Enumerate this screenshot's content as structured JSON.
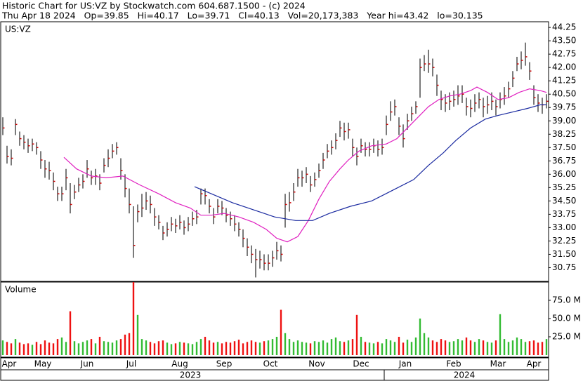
{
  "header": {
    "line1": "Historic Chart for US:VZ by Stockwatch.com 604.687.1500 - (c) 2024",
    "line2": "Thu Apr 18 2024   Op=39.85   Hi=40.17   Lo=39.71   Cl=40.13   Vol=20,173,383   Year hi=43.42   lo=30.135"
  },
  "chart_data": [
    {
      "type": "ohlc",
      "label": "US:VZ",
      "bar_color": "#222222",
      "close_color": "#cc0000",
      "xlim": [
        -1,
        259
      ],
      "ylim": [
        29.98,
        44.57
      ],
      "yticks": [
        30.75,
        {
          "value": 31.5,
          "label": "31.50"
        },
        32.25,
        {
          "value": 33,
          "label": "33.00"
        },
        33.75,
        {
          "value": 34.5,
          "label": "34.50"
        },
        35.25,
        {
          "value": 36,
          "label": "36.00"
        },
        36.75,
        {
          "value": 37.5,
          "label": "37.50"
        },
        38.25,
        {
          "value": 39,
          "label": "39.00"
        },
        39.75,
        {
          "value": 40.5,
          "label": "40.50"
        },
        41.25,
        {
          "value": 42,
          "label": "42.00"
        },
        42.75,
        {
          "value": 43.5,
          "label": "43.50"
        },
        44.25
      ],
      "x": [
        0,
        2,
        4,
        6,
        8,
        10,
        12,
        14,
        16,
        18,
        20,
        22,
        24,
        26,
        28,
        30,
        32,
        34,
        36,
        38,
        40,
        42,
        44,
        46,
        48,
        50,
        52,
        54,
        56,
        58,
        60,
        62,
        64,
        66,
        68,
        70,
        72,
        74,
        76,
        78,
        80,
        82,
        84,
        86,
        88,
        90,
        92,
        94,
        96,
        98,
        100,
        102,
        104,
        106,
        108,
        110,
        112,
        114,
        116,
        118,
        120,
        122,
        124,
        126,
        128,
        130,
        132,
        134,
        136,
        138,
        140,
        142,
        144,
        146,
        148,
        150,
        152,
        154,
        156,
        158,
        160,
        162,
        164,
        166,
        168,
        170,
        172,
        174,
        176,
        178,
        180,
        182,
        184,
        186,
        188,
        190,
        192,
        194,
        196,
        198,
        200,
        202,
        204,
        206,
        208,
        210,
        212,
        214,
        216,
        218,
        220,
        222,
        224,
        226,
        228,
        230,
        232,
        234,
        236,
        238,
        240,
        242,
        244,
        246,
        248,
        250,
        252,
        254,
        256,
        258
      ],
      "high": [
        39.2,
        37.6,
        37.4,
        39.1,
        38.4,
        38.2,
        38.0,
        38.0,
        37.8,
        37.3,
        36.8,
        36.7,
        36.1,
        35.3,
        35.3,
        36.3,
        35.5,
        35.4,
        35.8,
        36.0,
        36.8,
        36.2,
        36.3,
        36.0,
        36.9,
        37.4,
        37.7,
        37.8,
        36.9,
        36.0,
        35.2,
        34.2,
        34.3,
        34.9,
        35.0,
        34.8,
        34.1,
        33.7,
        33.1,
        33.3,
        33.6,
        33.5,
        33.7,
        33.4,
        33.6,
        33.9,
        34.0,
        35.2,
        35.2,
        34.6,
        34.1,
        34.6,
        34.5,
        34.1,
        33.9,
        33.7,
        33.3,
        32.9,
        32.4,
        32.0,
        31.8,
        31.7,
        31.5,
        31.5,
        31.7,
        32.2,
        32.0,
        34.9,
        35.0,
        35.5,
        36.3,
        36.2,
        36.4,
        35.9,
        36.1,
        36.6,
        37.2,
        37.7,
        37.9,
        38.3,
        39.0,
        38.9,
        38.9,
        38.0,
        37.5,
        38.0,
        37.8,
        37.8,
        38.0,
        37.9,
        38.0,
        39.3,
        40.1,
        40.2,
        39.2,
        38.8,
        39.4,
        39.8,
        40.1,
        42.5,
        42.7,
        43.0,
        42.5,
        41.6,
        40.7,
        40.5,
        40.6,
        40.7,
        41.0,
        41.0,
        40.3,
        40.2,
        40.5,
        40.6,
        40.3,
        40.4,
        40.6,
        40.2,
        40.6,
        40.9,
        41.2,
        41.8,
        42.6,
        42.9,
        43.4,
        42.3,
        41.0,
        40.5,
        40.3,
        40.5
      ],
      "low": [
        38.2,
        36.6,
        36.5,
        38.2,
        37.6,
        37.4,
        37.2,
        37.3,
        37.1,
        36.3,
        35.8,
        35.7,
        35.1,
        34.5,
        34.5,
        35.1,
        33.8,
        34.6,
        35.0,
        35.2,
        35.8,
        35.4,
        35.4,
        35.1,
        36.1,
        36.4,
        36.9,
        37.1,
        35.7,
        34.7,
        33.8,
        31.3,
        33.3,
        33.6,
        34.0,
        33.8,
        33.1,
        32.9,
        32.3,
        32.5,
        32.8,
        32.7,
        32.9,
        32.6,
        32.8,
        33.1,
        33.2,
        34.3,
        34.3,
        33.8,
        33.2,
        33.8,
        33.7,
        33.3,
        33.1,
        32.8,
        32.5,
        31.9,
        31.4,
        31.0,
        30.2,
        30.7,
        30.6,
        30.6,
        30.8,
        31.2,
        31.1,
        33.0,
        33.9,
        34.5,
        35.3,
        35.3,
        35.5,
        35.0,
        35.3,
        35.8,
        36.3,
        36.9,
        37.1,
        37.4,
        38.1,
        37.9,
        38.0,
        37.0,
        36.5,
        37.2,
        37.0,
        37.0,
        37.2,
        37.0,
        37.1,
        38.2,
        39.0,
        39.3,
        38.2,
        37.5,
        38.5,
        39.0,
        39.4,
        40.3,
        41.8,
        41.7,
        41.5,
        40.4,
        39.6,
        39.5,
        39.6,
        39.8,
        39.9,
        40.0,
        39.3,
        39.2,
        39.5,
        39.7,
        39.2,
        39.4,
        39.6,
        39.3,
        39.7,
        39.9,
        40.3,
        40.9,
        41.8,
        41.9,
        42.1,
        41.3,
        39.9,
        39.5,
        39.4,
        39.7
      ],
      "close": [
        38.6,
        37.0,
        36.9,
        38.8,
        38.0,
        37.8,
        37.6,
        37.7,
        37.5,
        36.8,
        36.3,
        36.2,
        35.6,
        34.9,
        34.9,
        35.8,
        34.3,
        35.0,
        35.4,
        35.6,
        36.3,
        35.8,
        35.9,
        35.5,
        36.5,
        36.9,
        37.3,
        37.5,
        36.2,
        35.2,
        34.3,
        32.0,
        33.9,
        34.1,
        34.5,
        34.3,
        33.6,
        33.3,
        32.7,
        32.9,
        33.2,
        33.1,
        33.3,
        33.0,
        33.2,
        33.5,
        33.6,
        34.9,
        34.8,
        34.2,
        33.6,
        34.2,
        34.1,
        33.7,
        33.5,
        33.2,
        32.9,
        32.4,
        31.9,
        31.5,
        31.2,
        31.2,
        31.0,
        31.0,
        31.3,
        31.7,
        31.5,
        34.3,
        34.4,
        35.0,
        35.8,
        35.8,
        36.0,
        35.4,
        35.7,
        36.2,
        36.8,
        37.3,
        37.5,
        37.9,
        38.6,
        38.4,
        38.5,
        37.5,
        37.0,
        37.6,
        37.4,
        37.4,
        37.6,
        37.4,
        37.5,
        38.8,
        39.5,
        39.8,
        38.7,
        38.0,
        39.0,
        39.4,
        39.8,
        42.0,
        42.2,
        42.2,
        42.0,
        41.0,
        40.2,
        40.0,
        40.1,
        40.2,
        40.4,
        40.5,
        39.8,
        39.7,
        40.0,
        40.2,
        39.8,
        39.9,
        40.1,
        39.8,
        40.2,
        40.4,
        40.8,
        41.4,
        42.2,
        42.4,
        42.6,
        41.8,
        40.3,
        40.0,
        39.9,
        40.1
      ],
      "lines": [
        {
          "color": "#e020c0",
          "x": [
            29,
            35,
            42,
            49,
            57,
            65,
            74,
            82,
            89,
            94,
            99,
            105,
            112,
            119,
            125,
            130,
            135,
            140,
            145,
            150,
            155,
            160,
            164,
            169,
            175,
            182,
            187,
            192,
            197,
            202,
            207,
            212,
            217,
            222,
            225,
            230,
            235,
            240,
            245,
            250,
            255,
            258
          ],
          "values": [
            36.95,
            36.3,
            35.9,
            35.8,
            35.9,
            35.4,
            34.9,
            34.4,
            34.1,
            33.7,
            33.7,
            33.8,
            33.6,
            33.3,
            32.9,
            32.4,
            32.2,
            32.5,
            33.4,
            34.6,
            35.6,
            36.3,
            36.8,
            37.3,
            37.6,
            37.7,
            38.0,
            38.6,
            39.2,
            39.8,
            40.2,
            40.4,
            40.5,
            40.7,
            40.9,
            40.6,
            40.2,
            40.3,
            40.6,
            40.8,
            40.7,
            40.6
          ]
        },
        {
          "color": "#1a2aa0",
          "x": [
            91,
            99,
            109,
            119,
            129,
            139,
            147,
            155,
            165,
            175,
            185,
            195,
            202,
            209,
            215,
            222,
            229,
            235,
            242,
            249,
            255,
            258
          ],
          "values": [
            35.3,
            34.9,
            34.4,
            34.0,
            33.6,
            33.4,
            33.4,
            33.8,
            34.2,
            34.5,
            35.1,
            35.7,
            36.5,
            37.2,
            37.9,
            38.6,
            39.1,
            39.3,
            39.5,
            39.7,
            39.9,
            39.9
          ]
        }
      ]
    },
    {
      "type": "volume",
      "label": "Volume",
      "up_color": "#33bb33",
      "down_color": "#ee1111",
      "xlim": [
        -1,
        259
      ],
      "ylim": [
        0,
        100
      ],
      "yticks": [
        {
          "value": 25,
          "label": "25.0 M"
        },
        {
          "value": 50,
          "label": "50.0 M"
        },
        {
          "value": 75,
          "label": "75.0 M"
        }
      ],
      "values": [
        20,
        18,
        16,
        22,
        17,
        15,
        16,
        14,
        18,
        15,
        20,
        17,
        16,
        22,
        24,
        18,
        60,
        19,
        16,
        18,
        20,
        22,
        16,
        25,
        19,
        18,
        17,
        20,
        22,
        28,
        30,
        100,
        55,
        22,
        20,
        18,
        16,
        19,
        20,
        17,
        15,
        16,
        18,
        17,
        16,
        15,
        18,
        22,
        25,
        20,
        17,
        18,
        16,
        18,
        17,
        19,
        21,
        16,
        18,
        20,
        18,
        17,
        19,
        20,
        22,
        25,
        62,
        30,
        22,
        18,
        20,
        18,
        17,
        16,
        19,
        18,
        20,
        17,
        22,
        24,
        19,
        18,
        20,
        22,
        55,
        25,
        18,
        17,
        16,
        18,
        16,
        22,
        20,
        18,
        25,
        17,
        21,
        18,
        24,
        50,
        30,
        24,
        20,
        18,
        22,
        20,
        18,
        19,
        22,
        20,
        24,
        20,
        18,
        22,
        20,
        18,
        17,
        20,
        56,
        22,
        18,
        20,
        24,
        22,
        18,
        19,
        20,
        17,
        18,
        22
      ],
      "xticks": [
        {
          "value": 3,
          "label": "Apr"
        },
        {
          "value": 19,
          "label": "May"
        },
        {
          "value": 40,
          "label": "Jun"
        },
        {
          "value": 61,
          "label": "Jul"
        },
        {
          "value": 84,
          "label": "Aug"
        },
        {
          "value": 105,
          "label": "Sep"
        },
        {
          "value": 127,
          "label": "Oct"
        },
        {
          "value": 149,
          "label": "Nov"
        },
        {
          "value": 170,
          "label": "Dec"
        },
        {
          "value": 191,
          "label": "Jan"
        },
        {
          "value": 214,
          "label": "Feb"
        },
        {
          "value": 235,
          "label": "Mar"
        },
        {
          "value": 252,
          "label": "Apr"
        }
      ],
      "yearticks": [
        {
          "value": 89,
          "label": "2023"
        },
        {
          "value": 219,
          "label": "2024"
        }
      ]
    }
  ]
}
